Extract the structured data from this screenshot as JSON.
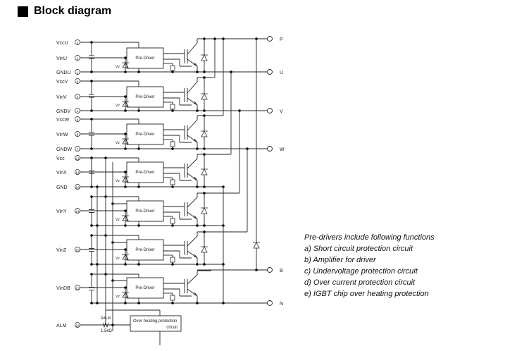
{
  "title": "Block diagram",
  "pins": [
    {
      "label": "VccU",
      "num": "3"
    },
    {
      "label": "VinU",
      "num": "2"
    },
    {
      "label": "GNDU",
      "num": "1"
    },
    {
      "label": "VccV",
      "num": "6"
    },
    {
      "label": "VinV",
      "num": "5"
    },
    {
      "label": "GNDV",
      "num": "4"
    },
    {
      "label": "VccW",
      "num": "9"
    },
    {
      "label": "VinW",
      "num": "8"
    },
    {
      "label": "GNDW",
      "num": "7"
    },
    {
      "label": "Vcc",
      "num": "11"
    },
    {
      "label": "VinX",
      "num": "13"
    },
    {
      "label": "GND",
      "num": "10"
    },
    {
      "label": "VinY",
      "num": "14"
    },
    {
      "label": "VinZ",
      "num": "15"
    },
    {
      "label": "VinDB",
      "num": "12"
    },
    {
      "label": "ALM",
      "num": "16"
    }
  ],
  "terminals": [
    "P",
    "U",
    "V",
    "W",
    "B",
    "N"
  ],
  "block_label": "Pre-Driver",
  "zener_label": "Vz",
  "overheat_label_1": "Over heating protection",
  "overheat_label_2": "circuit",
  "resistor_label": "RALM",
  "resistor_value": "1.5kΩ",
  "notes": [
    "Pre-drivers include following functions",
    "a) Short circuit protection circuit",
    "b) Amplifier for driver",
    "c) Undervoltage protection circuit",
    "d) Over current protection circuit",
    "e) IGBT chip over heating protection"
  ]
}
